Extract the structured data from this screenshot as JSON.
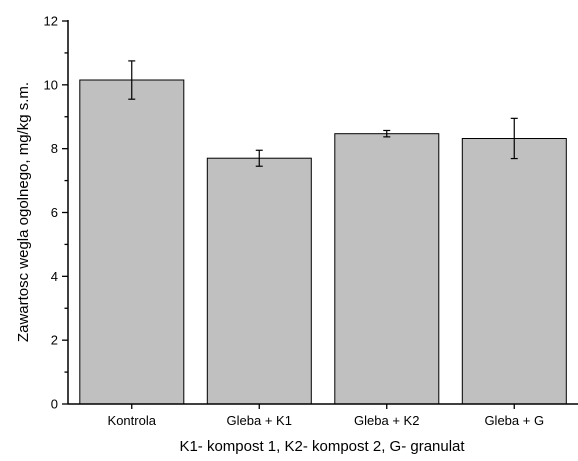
{
  "chart_data": {
    "type": "bar",
    "title": "",
    "xlabel": "K1- kompost 1, K2- kompost 2, G- granulat",
    "ylabel": "Zawartosc wegla ogolnego, mg/kg s.m.",
    "categories": [
      "Kontrola",
      "Gleba + K1",
      "Gleba + K2",
      "Gleba + G"
    ],
    "values": [
      10.15,
      7.7,
      8.47,
      8.32
    ],
    "error": [
      0.6,
      0.25,
      0.1,
      0.63
    ],
    "ylim": [
      0,
      12
    ],
    "yticks": [
      "0",
      "2",
      "4",
      "6",
      "8",
      "10",
      "12"
    ],
    "grid": false,
    "colors": {
      "bar_fill": "#c0c0c0",
      "bar_stroke": "#000000",
      "axis": "#000000"
    }
  }
}
